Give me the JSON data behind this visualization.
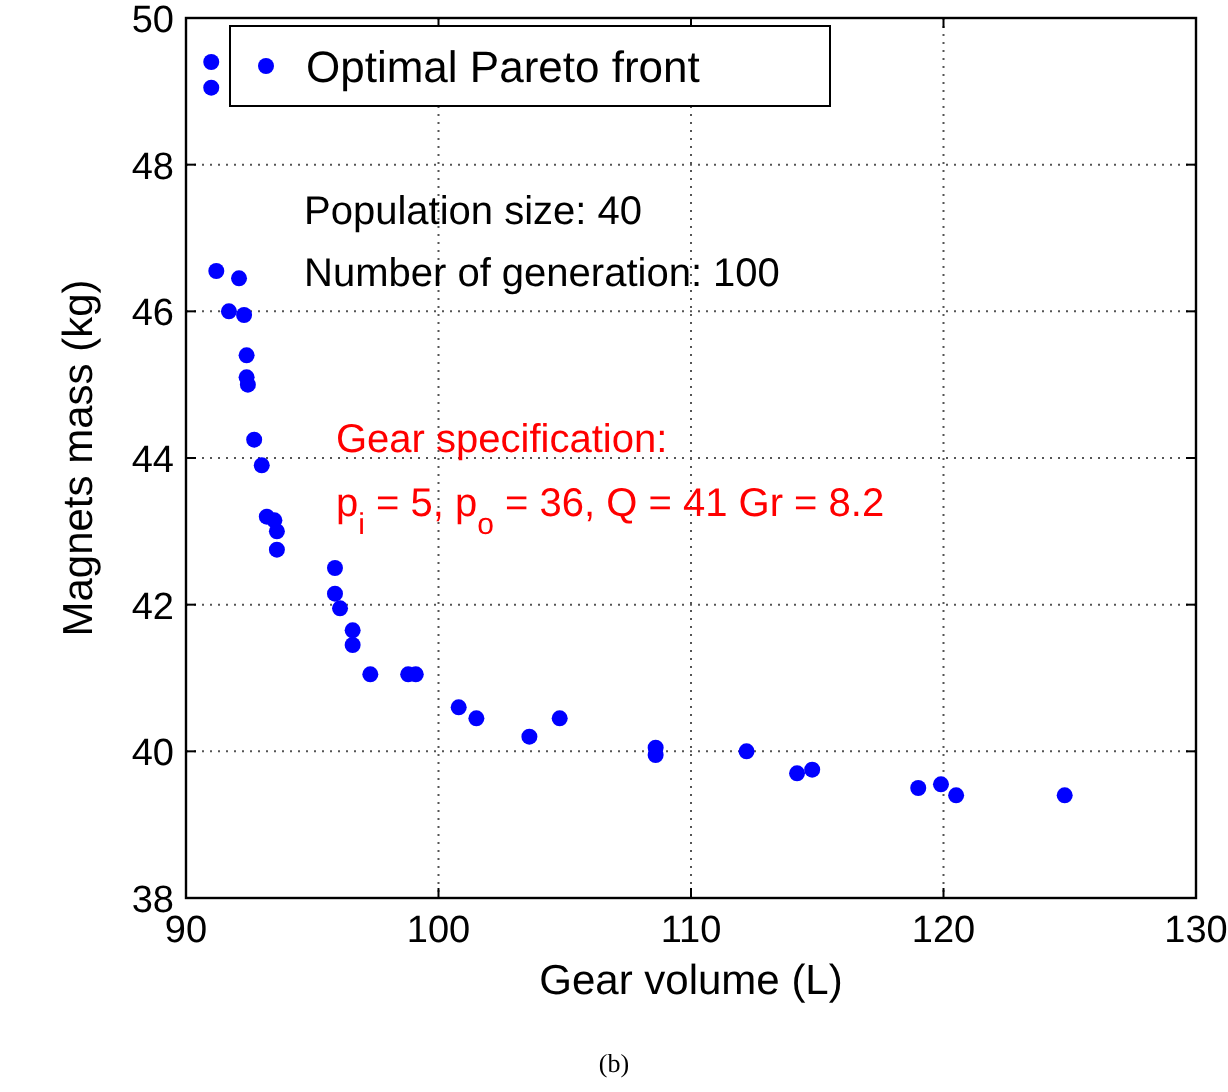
{
  "chart_data": {
    "type": "scatter",
    "xlabel": "Gear volume (L)",
    "ylabel": "Magnets mass (kg)",
    "xlim": [
      90,
      130
    ],
    "xticks": [
      90,
      100,
      110,
      120,
      130
    ],
    "ylim": [
      38,
      50
    ],
    "yticks": [
      38,
      40,
      42,
      44,
      46,
      48,
      50
    ],
    "grid": true,
    "legend": "top left",
    "marker": "circle",
    "series": [
      {
        "name": "Optimal Pareto front",
        "color": "#0000ff",
        "x": [
          91.0,
          91.0,
          91.2,
          92.1,
          91.7,
          92.3,
          92.4,
          92.4,
          92.45,
          92.7,
          93.0,
          93.2,
          93.5,
          93.6,
          93.6,
          95.9,
          95.9,
          96.1,
          96.6,
          96.6,
          97.3,
          98.8,
          99.1,
          100.8,
          101.5,
          103.6,
          104.8,
          108.6,
          108.6,
          112.2,
          114.2,
          114.8,
          119.0,
          119.9,
          120.5,
          124.8
        ],
        "values": [
          49.4,
          49.05,
          46.55,
          46.45,
          46.0,
          45.95,
          45.4,
          45.1,
          45.0,
          44.25,
          43.9,
          43.2,
          43.15,
          43.0,
          42.75,
          42.5,
          42.15,
          41.95,
          41.65,
          41.45,
          41.05,
          41.05,
          41.05,
          40.6,
          40.45,
          40.2,
          40.45,
          40.05,
          39.95,
          40.0,
          39.7,
          39.75,
          39.5,
          39.55,
          39.4,
          39.4
        ]
      }
    ],
    "annotations": [
      "Population size: 40",
      "Number of generation: 100",
      "Gear specification:",
      "p$_{i}$ = 5, p$_{o}$ = 36, Q = 41 Gr = 8.2",
      "(b)"
    ]
  }
}
